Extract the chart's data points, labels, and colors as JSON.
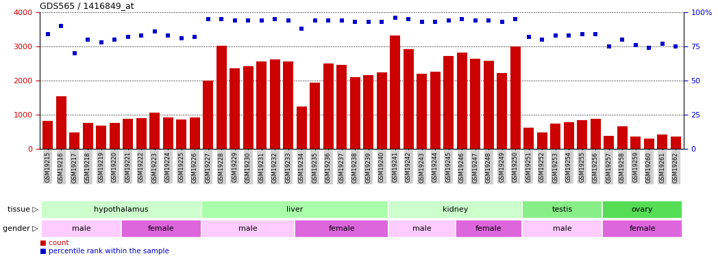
{
  "title": "GDS565 / 1416849_at",
  "samples": [
    "GSM19215",
    "GSM19216",
    "GSM19217",
    "GSM19218",
    "GSM19219",
    "GSM19220",
    "GSM19221",
    "GSM19222",
    "GSM19223",
    "GSM19224",
    "GSM19225",
    "GSM19226",
    "GSM19227",
    "GSM19228",
    "GSM19229",
    "GSM19230",
    "GSM19231",
    "GSM19232",
    "GSM19233",
    "GSM19234",
    "GSM19235",
    "GSM19236",
    "GSM19237",
    "GSM19238",
    "GSM19239",
    "GSM19240",
    "GSM19241",
    "GSM19242",
    "GSM19243",
    "GSM19244",
    "GSM19245",
    "GSM19246",
    "GSM19247",
    "GSM19248",
    "GSM19249",
    "GSM19250",
    "GSM19251",
    "GSM19252",
    "GSM19253",
    "GSM19254",
    "GSM19255",
    "GSM19256",
    "GSM19257",
    "GSM19258",
    "GSM19259",
    "GSM19260",
    "GSM19261",
    "GSM19262"
  ],
  "counts": [
    820,
    1540,
    490,
    760,
    680,
    760,
    880,
    900,
    1060,
    930,
    870,
    920,
    2000,
    3020,
    2360,
    2420,
    2570,
    2630,
    2560,
    1250,
    1940,
    2500,
    2470,
    2100,
    2160,
    2250,
    3320,
    2920,
    2200,
    2270,
    2720,
    2820,
    2650,
    2580,
    2220,
    3000,
    620,
    490,
    740,
    790,
    840,
    880,
    380,
    670,
    360,
    310,
    430,
    370
  ],
  "percentile": [
    84,
    90,
    70,
    80,
    78,
    80,
    82,
    83,
    86,
    83,
    81,
    82,
    95,
    95,
    94,
    94,
    94,
    95,
    94,
    88,
    94,
    94,
    94,
    93,
    93,
    93,
    96,
    95,
    93,
    93,
    94,
    95,
    94,
    94,
    93,
    95,
    82,
    80,
    83,
    83,
    84,
    84,
    75,
    80,
    76,
    74,
    77,
    75
  ],
  "bar_color": "#cc0000",
  "dot_color": "#0000cc",
  "ylim_left": [
    0,
    4000
  ],
  "ylim_right": [
    0,
    100
  ],
  "yticks_left": [
    0,
    1000,
    2000,
    3000,
    4000
  ],
  "yticks_right": [
    0,
    25,
    50,
    75,
    100
  ],
  "tissue_groups": [
    {
      "label": "hypothalamus",
      "start": 0,
      "end": 12,
      "color": "#ccffcc"
    },
    {
      "label": "liver",
      "start": 12,
      "end": 26,
      "color": "#aaffaa"
    },
    {
      "label": "kidney",
      "start": 26,
      "end": 36,
      "color": "#ccffcc"
    },
    {
      "label": "testis",
      "start": 36,
      "end": 42,
      "color": "#88ee88"
    },
    {
      "label": "ovary",
      "start": 42,
      "end": 48,
      "color": "#55dd55"
    }
  ],
  "gender_groups": [
    {
      "label": "male",
      "start": 0,
      "end": 6,
      "color": "#ffccff"
    },
    {
      "label": "female",
      "start": 6,
      "end": 12,
      "color": "#dd66dd"
    },
    {
      "label": "male",
      "start": 12,
      "end": 19,
      "color": "#ffccff"
    },
    {
      "label": "female",
      "start": 19,
      "end": 26,
      "color": "#dd66dd"
    },
    {
      "label": "male",
      "start": 26,
      "end": 31,
      "color": "#ffccff"
    },
    {
      "label": "female",
      "start": 31,
      "end": 36,
      "color": "#dd66dd"
    },
    {
      "label": "male",
      "start": 36,
      "end": 42,
      "color": "#ffccff"
    },
    {
      "label": "female",
      "start": 42,
      "end": 48,
      "color": "#dd66dd"
    }
  ],
  "legend_count_color": "#cc0000",
  "legend_dot_color": "#0000cc",
  "xtick_bg": "#d0d0d0"
}
